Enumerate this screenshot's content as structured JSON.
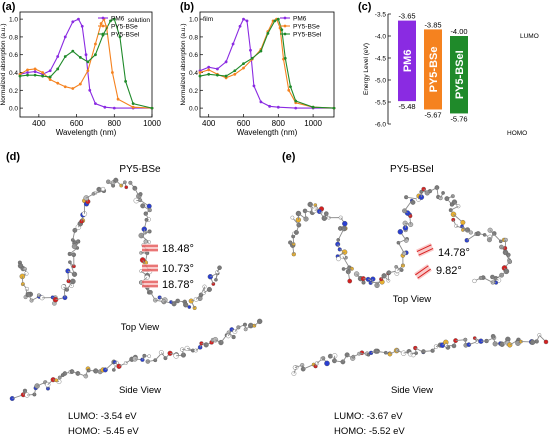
{
  "panels": {
    "a": {
      "letter": "(a)",
      "tag": "solution"
    },
    "b": {
      "letter": "(b)",
      "tag": "film"
    },
    "c": {
      "letter": "(c)"
    },
    "d": {
      "letter": "(d)",
      "title": "PY5-BSe",
      "angles": [
        "18.48°",
        "10.73°",
        "18.78°"
      ],
      "top_view": "Top View",
      "side_view": "Side View",
      "lumo": "LUMO: -3.54 eV",
      "homo": "HOMO: -5.45 eV"
    },
    "e": {
      "letter": "(e)",
      "title": "PY5-BSeI",
      "angles": [
        "14.78°",
        "9.82°"
      ],
      "top_view": "Top View",
      "side_view": "Side View",
      "lumo": "LUMO: -3.67 eV",
      "homo": "HOMO: -5.52 eV"
    }
  },
  "colors": {
    "PM6": "#8a2be2",
    "PY5-BSe": "#f5821f",
    "PY5-BSeI": "#1f8a2a"
  },
  "chart_data": [
    {
      "type": "line",
      "panel": "a",
      "xlabel": "Wavelength (nm)",
      "ylabel": "Normalized absorption (a.u.)",
      "xlim": [
        300,
        1000
      ],
      "ylim": [
        -0.1,
        1.08
      ],
      "xticks": [
        "400",
        "600",
        "800",
        "1000"
      ],
      "yticks": [
        "0.0",
        "0.2",
        "0.4",
        "0.6",
        "0.8",
        "1.0"
      ],
      "series": [
        {
          "name": "PM6",
          "x": [
            300,
            340,
            380,
            420,
            460,
            500,
            540,
            580,
            610,
            630,
            650,
            670,
            700,
            750,
            800,
            900,
            1000
          ],
          "y": [
            0.38,
            0.4,
            0.41,
            0.38,
            0.42,
            0.58,
            0.8,
            0.97,
            1.0,
            0.92,
            0.6,
            0.2,
            0.05,
            0.01,
            0.0,
            0.0,
            0.0
          ]
        },
        {
          "name": "PY5-BSe",
          "x": [
            300,
            340,
            380,
            420,
            460,
            500,
            540,
            580,
            620,
            660,
            700,
            730,
            745,
            760,
            790,
            820,
            900,
            1000
          ],
          "y": [
            0.38,
            0.43,
            0.44,
            0.4,
            0.32,
            0.28,
            0.24,
            0.22,
            0.27,
            0.42,
            0.72,
            0.95,
            1.0,
            0.9,
            0.4,
            0.1,
            0.01,
            0.0
          ]
        },
        {
          "name": "PY5-BSeI",
          "x": [
            300,
            340,
            380,
            420,
            460,
            500,
            540,
            580,
            620,
            660,
            700,
            740,
            780,
            800,
            830,
            860,
            900,
            1000
          ],
          "y": [
            0.36,
            0.37,
            0.37,
            0.36,
            0.35,
            0.44,
            0.58,
            0.64,
            0.57,
            0.52,
            0.6,
            0.82,
            0.98,
            1.0,
            0.8,
            0.3,
            0.05,
            0.0
          ]
        }
      ]
    },
    {
      "type": "line",
      "panel": "b",
      "xlabel": "Wavelength (nm)",
      "ylabel": "Normalized absorption (a.u.)",
      "xlim": [
        350,
        1120
      ],
      "ylim": [
        -0.1,
        1.08
      ],
      "xticks": [
        "400",
        "600",
        "800",
        "1000"
      ],
      "yticks": [
        "0.0",
        "0.2",
        "0.4",
        "0.6",
        "0.8",
        "1.0"
      ],
      "series": [
        {
          "name": "PM6",
          "x": [
            350,
            400,
            450,
            500,
            540,
            580,
            600,
            620,
            640,
            660,
            700,
            750,
            800,
            900,
            1000,
            1120
          ],
          "y": [
            0.42,
            0.46,
            0.44,
            0.52,
            0.72,
            0.92,
            1.0,
            0.98,
            0.65,
            0.25,
            0.07,
            0.02,
            0.01,
            0.0,
            0.0,
            0.0
          ]
        },
        {
          "name": "PY5-BSe",
          "x": [
            350,
            400,
            450,
            500,
            550,
            600,
            650,
            700,
            740,
            770,
            790,
            810,
            830,
            860,
            900,
            1000,
            1120
          ],
          "y": [
            0.4,
            0.43,
            0.38,
            0.34,
            0.38,
            0.45,
            0.55,
            0.66,
            0.86,
            0.98,
            1.0,
            0.9,
            0.55,
            0.2,
            0.06,
            0.01,
            0.0
          ]
        },
        {
          "name": "PY5-BSeI",
          "x": [
            350,
            400,
            450,
            500,
            550,
            600,
            650,
            700,
            740,
            780,
            800,
            820,
            840,
            870,
            900,
            1000,
            1120
          ],
          "y": [
            0.36,
            0.38,
            0.37,
            0.36,
            0.42,
            0.5,
            0.56,
            0.64,
            0.84,
            0.98,
            1.0,
            0.88,
            0.56,
            0.24,
            0.08,
            0.01,
            0.0
          ]
        }
      ]
    },
    {
      "type": "bar",
      "panel": "c",
      "ylabel": "Energy Level (eV)",
      "ylim": [
        -6.0,
        -3.5
      ],
      "yticks": [
        "-3.5",
        "-4.0",
        "-4.5",
        "-5.0",
        "-5.5",
        "-6.0"
      ],
      "top_label": "LUMO",
      "bottom_label": "HOMO",
      "categories": [
        "PM6",
        "PY5-BSe",
        "PY5-BSeI"
      ],
      "lumo": [
        -3.65,
        -3.85,
        -4.0
      ],
      "homo": [
        -5.48,
        -5.67,
        -5.76
      ],
      "lumo_labels": [
        "-3.65",
        "-3.85",
        "-4.00"
      ],
      "homo_labels": [
        "-5.48",
        "-5.67",
        "-5.76"
      ]
    }
  ]
}
